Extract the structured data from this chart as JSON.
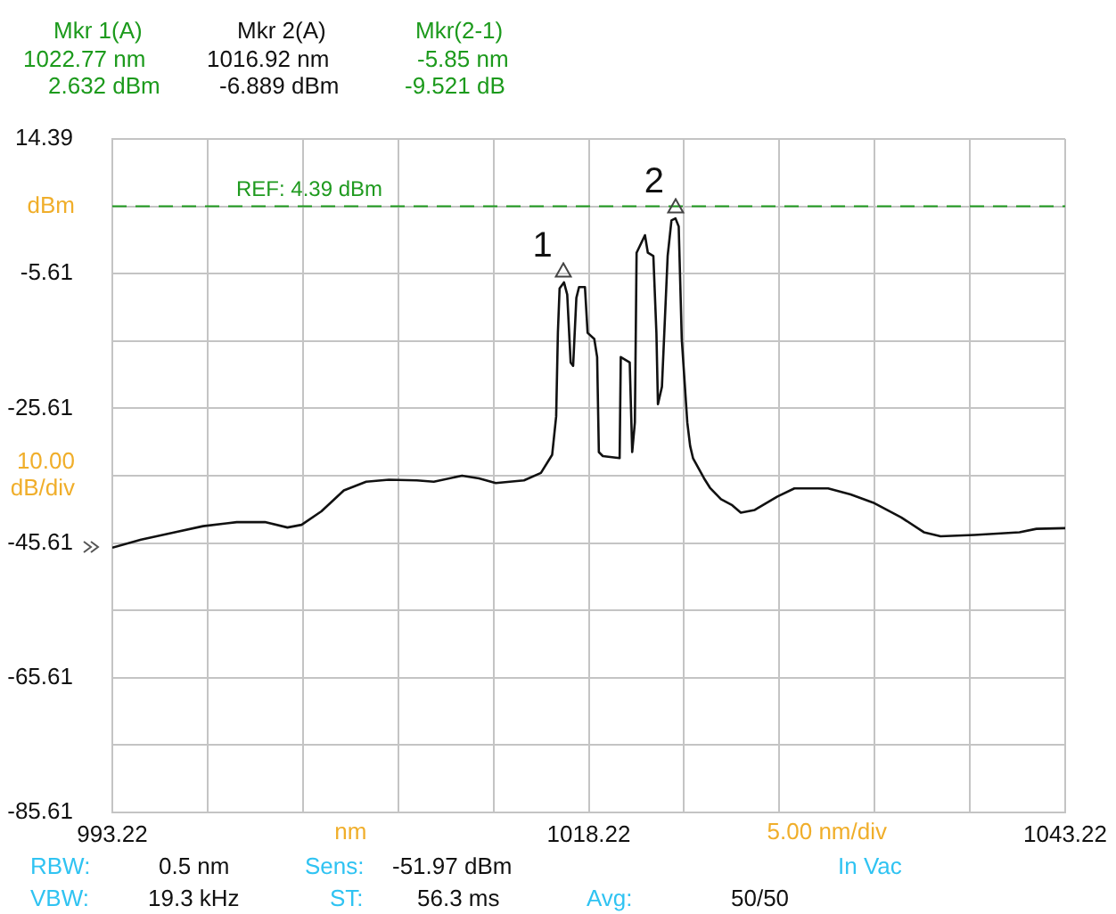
{
  "chart_data": {
    "type": "line",
    "xlabel": "nm",
    "ylabel": "dBm",
    "color": "#111111",
    "x": [
      993.22,
      994.73,
      996.5,
      997.98,
      999.75,
      1001.23,
      1002.41,
      1003.15,
      1004.19,
      1005.37,
      1006.54,
      1007.73,
      1009.2,
      1010.09,
      1011.57,
      1012.46,
      1013.34,
      1014.82,
      1015.71,
      1016.3,
      1016.51,
      1016.6,
      1016.69,
      1016.92,
      1017.09,
      1017.27,
      1017.4,
      1017.57,
      1017.71,
      1018.02,
      1018.16,
      1018.51,
      1018.66,
      1018.75,
      1018.96,
      1019.84,
      1019.9,
      1020.37,
      1020.5,
      1020.64,
      1020.73,
      1021.17,
      1021.32,
      1021.61,
      1021.77,
      1021.85,
      1022.06,
      1022.36,
      1022.56,
      1022.77,
      1022.94,
      1023.1,
      1023.39,
      1023.54,
      1023.69,
      1024.27,
      1024.58,
      1025.16,
      1025.75,
      1026.2,
      1026.93,
      1028.12,
      1029.01,
      1030.78,
      1031.96,
      1033.14,
      1034.62,
      1035.8,
      1036.68,
      1038.46,
      1040.82,
      1041.71,
      1043.22
    ],
    "values": [
      -46.3,
      -45.1,
      -44.0,
      -43.1,
      -42.5,
      -42.5,
      -43.3,
      -42.9,
      -40.9,
      -37.8,
      -36.5,
      -36.2,
      -36.3,
      -36.5,
      -35.6,
      -36.0,
      -36.7,
      -36.3,
      -35.2,
      -32.5,
      -26.8,
      -14.4,
      -7.8,
      -6.9,
      -8.7,
      -18.8,
      -19.3,
      -9.2,
      -7.6,
      -7.6,
      -14.4,
      -15.3,
      -18.0,
      -32.1,
      -32.7,
      -33.0,
      -18.0,
      -18.8,
      -32.1,
      -27.7,
      -2.5,
      0.1,
      -2.5,
      -3.0,
      -14.4,
      -25.0,
      -22.4,
      -3.0,
      2.3,
      2.6,
      1.4,
      -15.3,
      -27.7,
      -31.2,
      -33.0,
      -36.0,
      -37.4,
      -39.1,
      -40.0,
      -41.1,
      -40.7,
      -38.7,
      -37.5,
      -37.5,
      -38.4,
      -39.6,
      -41.8,
      -44.0,
      -44.6,
      -44.4,
      -44.0,
      -43.5,
      -43.4
    ],
    "xlim": [
      993.22,
      1043.22
    ],
    "xticks": [
      993.22,
      {
        "value": 998.22,
        "label": null
      },
      {
        "value": 1003.22,
        "label": null
      },
      {
        "value": 1008.22,
        "label": null
      },
      {
        "value": 1013.22,
        "label": null
      },
      1018.22,
      {
        "value": 1023.22,
        "label": null
      },
      {
        "value": 1028.22,
        "label": null
      },
      {
        "value": 1033.22,
        "label": null
      },
      {
        "value": 1038.22,
        "label": null
      },
      1043.22
    ],
    "ylim": [
      -85.61,
      14.39
    ],
    "yticks": [
      14.39,
      {
        "value": 4.39,
        "label": null
      },
      -5.61,
      {
        "value": -15.61,
        "label": null
      },
      -25.61,
      {
        "value": -35.61,
        "label": null
      },
      -45.61,
      {
        "value": -55.61,
        "label": null
      },
      -65.61,
      {
        "value": -75.61,
        "label": null
      },
      -85.61
    ],
    "grid": true,
    "ref_lines": [
      {
        "axis": "y",
        "value": 4.39,
        "label": "REF: 4.39 dBm",
        "color": "#1f9a1f",
        "line_style": "dashed"
      }
    ],
    "annotations": [
      "Mkr 1(A)",
      "1022.77 nm",
      "2.632 dBm",
      "Mkr 2(A)",
      "1016.92 nm",
      "-6.889 dBm",
      "Mkr(2-1)",
      "-5.85 nm",
      "-9.521 dB",
      "5.00 nm/div",
      "10.00 dB/div",
      "RBW:",
      "0.5 nm",
      "Sens:",
      "-51.97 dBm",
      "In Vac",
      "VBW:",
      "19.3 kHz",
      "ST:",
      "56.3 ms",
      "Avg:",
      "50/50",
      {
        "text": "1",
        "x": 1016.92,
        "y": -6.889
      },
      {
        "text": "2",
        "x": 1022.77,
        "y": 2.632
      }
    ]
  }
}
